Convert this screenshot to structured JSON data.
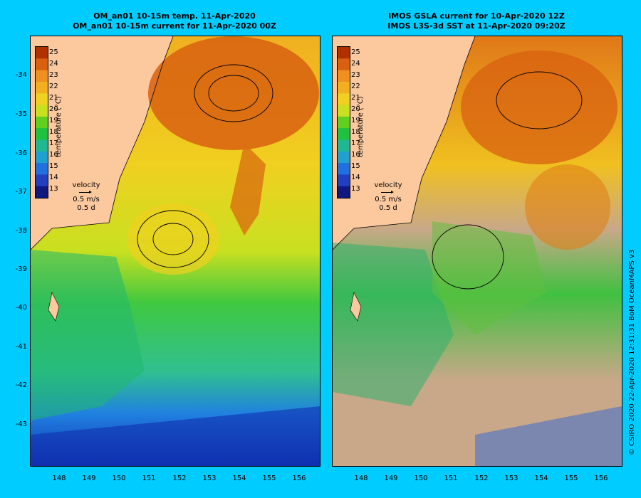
{
  "left_panel": {
    "title_line1": "OM_an01 10-15m temp. 11-Apr-2020",
    "title_line2": "OM_an01 10-15m current for 11-Apr-2020 00Z"
  },
  "right_panel": {
    "title_line1": "IMOS GSLA current for 10-Apr-2020 12Z",
    "title_line2": "IMOS L3S-3d SST at 11-Apr-2020 09:20Z"
  },
  "colorbar": {
    "title": "temperature (°C)",
    "ticks": [
      "25",
      "24",
      "23",
      "22",
      "21",
      "20",
      "19",
      "18",
      "17",
      "16",
      "15",
      "14",
      "13"
    ],
    "colors": [
      "#b03000",
      "#d86010",
      "#f09020",
      "#f0b020",
      "#f0d020",
      "#c8e020",
      "#60d020",
      "#20c040",
      "#20b890",
      "#20a0d0",
      "#2070e0",
      "#2040c0",
      "#101880"
    ]
  },
  "velocity_legend": {
    "label": "velocity",
    "speed": "0.5 m/s",
    "duration": "0.5 d"
  },
  "latitude_ticks": [
    "-34",
    "-35",
    "-36",
    "-37",
    "-38",
    "-39",
    "-40",
    "-41",
    "-42",
    "-43"
  ],
  "longitude_ticks": [
    "148",
    "149",
    "150",
    "151",
    "152",
    "153",
    "154",
    "155",
    "156"
  ],
  "credit": "© CSIRO 2020   22-Apr-2020 12:31:31 BoM OceanMAPS v3",
  "colors": {
    "background": "#00ccff",
    "land": "#fcc99f",
    "cloud_mask": "#c8a888"
  }
}
